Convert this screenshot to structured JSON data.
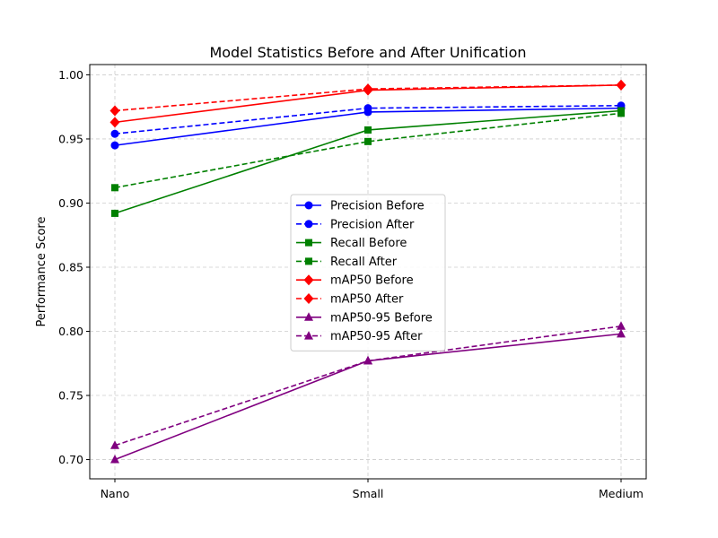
{
  "chart_data": {
    "type": "line",
    "title": "Model Statistics Before and After Unification",
    "xlabel": "",
    "ylabel": "Performance Score",
    "categories": [
      "Nano",
      "Small",
      "Medium"
    ],
    "ylim": [
      0.685,
      1.008
    ],
    "yticks": [
      0.7,
      0.75,
      0.8,
      0.85,
      0.9,
      0.95,
      1.0
    ],
    "ytick_labels": [
      "0.70",
      "0.75",
      "0.80",
      "0.85",
      "0.90",
      "0.95",
      "1.00"
    ],
    "grid": true,
    "legend_position": "center",
    "series": [
      {
        "name": "Precision Before",
        "values": [
          0.945,
          0.971,
          0.974
        ],
        "color": "#0000ff",
        "dash": "solid",
        "marker": "circle"
      },
      {
        "name": "Precision After",
        "values": [
          0.954,
          0.974,
          0.976
        ],
        "color": "#0000ff",
        "dash": "dashed",
        "marker": "circle"
      },
      {
        "name": "Recall Before",
        "values": [
          0.892,
          0.957,
          0.972
        ],
        "color": "#008000",
        "dash": "solid",
        "marker": "square"
      },
      {
        "name": "Recall After",
        "values": [
          0.912,
          0.948,
          0.97
        ],
        "color": "#008000",
        "dash": "dashed",
        "marker": "square"
      },
      {
        "name": "mAP50 Before",
        "values": [
          0.963,
          0.988,
          0.992
        ],
        "color": "#ff0000",
        "dash": "solid",
        "marker": "diamond"
      },
      {
        "name": "mAP50 After",
        "values": [
          0.972,
          0.989,
          0.992
        ],
        "color": "#ff0000",
        "dash": "dashed",
        "marker": "diamond"
      },
      {
        "name": "mAP50-95 Before",
        "values": [
          0.7,
          0.777,
          0.798
        ],
        "color": "#800080",
        "dash": "solid",
        "marker": "triangle"
      },
      {
        "name": "mAP50-95 After",
        "values": [
          0.711,
          0.777,
          0.804
        ],
        "color": "#800080",
        "dash": "dashed",
        "marker": "triangle"
      }
    ]
  }
}
